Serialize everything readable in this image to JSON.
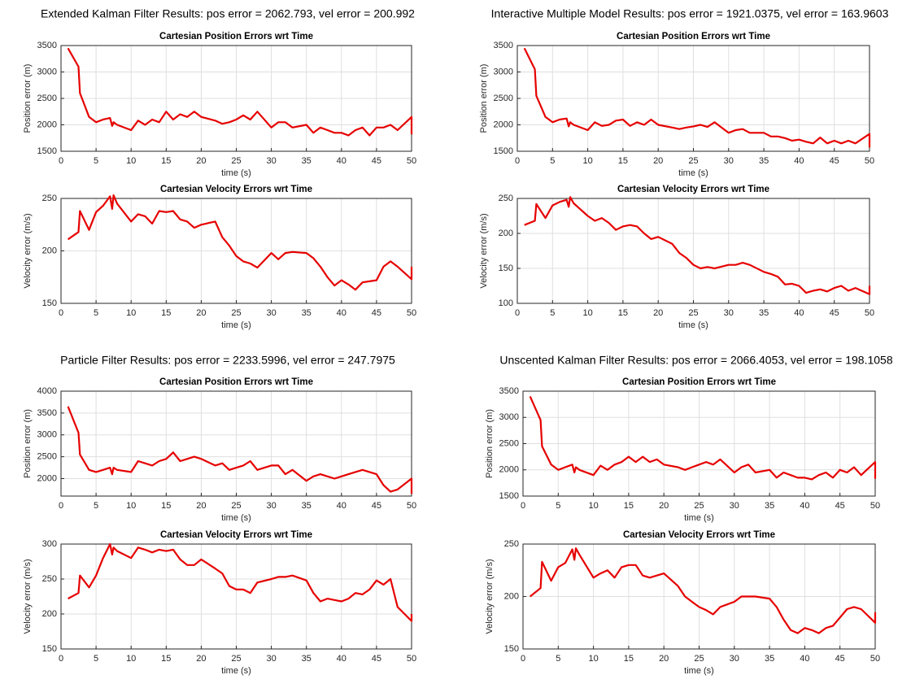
{
  "panel_titles": [
    "Extended Kalman Filter Results: pos error = 2062.793, vel error = 200.992",
    "Interactive Multiple Model Results: pos error = 1921.0375, vel error = 163.9603",
    "Particle Filter Results: pos error = 2233.5996, vel error = 247.7975",
    "Unscented Kalman Filter Results: pos error = 2066.4053, vel error = 198.1058"
  ],
  "chart_data": [
    {
      "type": "line",
      "title": "Cartesian Position Errors wrt Time",
      "xlabel": "time (s)",
      "ylabel": "Position error (m)",
      "color": "#e60000",
      "grid": true,
      "xlim": [
        0,
        50
      ],
      "xticks": [
        0,
        5,
        10,
        15,
        20,
        25,
        30,
        35,
        40,
        45,
        50
      ],
      "ylim": [
        1500,
        3500
      ],
      "yticks": [
        1500,
        2000,
        2500,
        3000,
        3500
      ],
      "x": [
        1,
        2.5,
        2.7,
        4,
        5,
        6,
        7,
        7.3,
        7.5,
        8,
        10,
        11,
        12,
        13,
        14,
        15,
        16,
        17,
        18,
        19,
        20,
        22,
        23,
        24,
        25,
        26,
        27,
        28,
        30,
        31,
        32,
        33,
        35,
        36,
        37,
        38,
        39,
        40,
        41,
        42,
        43,
        44,
        45,
        46,
        47,
        48,
        50,
        50
      ],
      "values": [
        3450,
        3100,
        2600,
        2150,
        2050,
        2100,
        2130,
        1980,
        2050,
        2000,
        1900,
        2080,
        2000,
        2100,
        2050,
        2250,
        2100,
        2200,
        2150,
        2250,
        2150,
        2080,
        2020,
        2050,
        2100,
        2180,
        2100,
        2250,
        1950,
        2050,
        2050,
        1950,
        2000,
        1850,
        1950,
        1900,
        1850,
        1850,
        1800,
        1900,
        1950,
        1800,
        1950,
        1950,
        2000,
        1900,
        2150,
        1820
      ]
    },
    {
      "type": "line",
      "title": "Cartesian Velocity Errors wrt Time",
      "xlabel": "time (s)",
      "ylabel": "Velocity error (m/s)",
      "color": "#e60000",
      "grid": true,
      "xlim": [
        0,
        50
      ],
      "xticks": [
        0,
        5,
        10,
        15,
        20,
        25,
        30,
        35,
        40,
        45,
        50
      ],
      "ylim": [
        150,
        250
      ],
      "yticks": [
        150,
        200,
        250
      ],
      "x": [
        1,
        2.5,
        2.7,
        4,
        5,
        6,
        7,
        7.3,
        7.5,
        8,
        10,
        11,
        12,
        13,
        14,
        15,
        16,
        17,
        18,
        19,
        20,
        22,
        23,
        24,
        25,
        26,
        27,
        28,
        30,
        31,
        32,
        33,
        35,
        36,
        37,
        38,
        39,
        40,
        41,
        42,
        43,
        44,
        45,
        46,
        47,
        48,
        50,
        50
      ],
      "values": [
        211,
        218,
        238,
        220,
        237,
        243,
        252,
        240,
        253,
        245,
        228,
        235,
        233,
        226,
        238,
        237,
        238,
        230,
        228,
        222,
        225,
        228,
        213,
        205,
        195,
        190,
        188,
        184,
        198,
        192,
        198,
        199,
        198,
        193,
        185,
        175,
        167,
        172,
        168,
        163,
        170,
        171,
        172,
        185,
        190,
        185,
        173,
        185
      ]
    },
    {
      "type": "line",
      "title": "Cartesian Position Errors wrt Time",
      "xlabel": "time (s)",
      "ylabel": "Position error (m)",
      "color": "#e60000",
      "grid": true,
      "xlim": [
        0,
        50
      ],
      "xticks": [
        0,
        5,
        10,
        15,
        20,
        25,
        30,
        35,
        40,
        45,
        50
      ],
      "ylim": [
        1500,
        3500
      ],
      "yticks": [
        1500,
        2000,
        2500,
        3000,
        3500
      ],
      "x": [
        1,
        2.5,
        2.7,
        4,
        5,
        6,
        7,
        7.3,
        7.5,
        8,
        10,
        11,
        12,
        13,
        14,
        15,
        16,
        17,
        18,
        19,
        20,
        22,
        23,
        24,
        25,
        26,
        27,
        28,
        30,
        31,
        32,
        33,
        35,
        36,
        37,
        38,
        39,
        40,
        41,
        42,
        43,
        44,
        45,
        46,
        47,
        48,
        50,
        50
      ],
      "values": [
        3450,
        3050,
        2550,
        2150,
        2050,
        2100,
        2120,
        1970,
        2050,
        2000,
        1900,
        2050,
        1980,
        2000,
        2080,
        2100,
        1980,
        2050,
        2000,
        2100,
        2000,
        1950,
        1920,
        1950,
        1970,
        2000,
        1960,
        2050,
        1850,
        1900,
        1920,
        1850,
        1850,
        1780,
        1780,
        1750,
        1700,
        1720,
        1680,
        1650,
        1760,
        1650,
        1700,
        1650,
        1700,
        1650,
        1830,
        1570
      ]
    },
    {
      "type": "line",
      "title": "Cartesian Velocity Errors wrt Time",
      "xlabel": "time (s)",
      "ylabel": "Velocity error (m/s)",
      "color": "#e60000",
      "grid": true,
      "xlim": [
        0,
        50
      ],
      "xticks": [
        0,
        5,
        10,
        15,
        20,
        25,
        30,
        35,
        40,
        45,
        50
      ],
      "ylim": [
        100,
        250
      ],
      "yticks": [
        100,
        150,
        200,
        250
      ],
      "x": [
        1,
        2.5,
        2.7,
        4,
        5,
        6,
        7,
        7.3,
        7.5,
        8,
        10,
        11,
        12,
        13,
        14,
        15,
        16,
        17,
        18,
        19,
        20,
        22,
        23,
        24,
        25,
        26,
        27,
        28,
        30,
        31,
        32,
        33,
        35,
        36,
        37,
        38,
        39,
        40,
        41,
        42,
        43,
        44,
        45,
        46,
        47,
        48,
        50,
        50
      ],
      "values": [
        212,
        218,
        242,
        222,
        240,
        245,
        248,
        238,
        252,
        243,
        225,
        218,
        222,
        215,
        205,
        210,
        212,
        210,
        200,
        192,
        195,
        185,
        172,
        165,
        155,
        150,
        152,
        150,
        155,
        155,
        158,
        155,
        145,
        142,
        138,
        127,
        128,
        125,
        115,
        118,
        120,
        117,
        122,
        125,
        118,
        122,
        113,
        125
      ]
    },
    {
      "type": "line",
      "title": "Cartesian Position Errors wrt Time",
      "xlabel": "time (s)",
      "ylabel": "Position error (m)",
      "color": "#e60000",
      "grid": true,
      "xlim": [
        0,
        50
      ],
      "xticks": [
        0,
        5,
        10,
        15,
        20,
        25,
        30,
        35,
        40,
        45,
        50
      ],
      "ylim": [
        1600,
        4000
      ],
      "yticks": [
        2000,
        2500,
        3000,
        3500,
        4000
      ],
      "x": [
        1,
        2.5,
        2.7,
        4,
        5,
        6,
        7,
        7.3,
        7.5,
        8,
        10,
        11,
        12,
        13,
        14,
        15,
        16,
        17,
        18,
        19,
        20,
        22,
        23,
        24,
        25,
        26,
        27,
        28,
        30,
        31,
        32,
        33,
        35,
        36,
        37,
        38,
        39,
        40,
        41,
        42,
        43,
        44,
        45,
        46,
        47,
        48,
        50,
        50
      ],
      "values": [
        3650,
        3050,
        2550,
        2200,
        2150,
        2200,
        2250,
        2100,
        2250,
        2200,
        2150,
        2400,
        2350,
        2300,
        2400,
        2450,
        2600,
        2400,
        2450,
        2500,
        2450,
        2300,
        2350,
        2200,
        2250,
        2300,
        2400,
        2200,
        2300,
        2300,
        2100,
        2200,
        1950,
        2050,
        2100,
        2050,
        2000,
        2050,
        2100,
        2150,
        2200,
        2150,
        2100,
        1850,
        1700,
        1750,
        2000,
        1650
      ]
    },
    {
      "type": "line",
      "title": "Cartesian Velocity Errors wrt Time",
      "xlabel": "time (s)",
      "ylabel": "Velocity error (m/s)",
      "color": "#e60000",
      "grid": true,
      "xlim": [
        0,
        50
      ],
      "xticks": [
        0,
        5,
        10,
        15,
        20,
        25,
        30,
        35,
        40,
        45,
        50
      ],
      "ylim": [
        150,
        300
      ],
      "yticks": [
        150,
        200,
        250,
        300
      ],
      "x": [
        1,
        2.5,
        2.7,
        4,
        5,
        6,
        7,
        7.3,
        7.5,
        8,
        10,
        11,
        12,
        13,
        14,
        15,
        16,
        17,
        18,
        19,
        20,
        22,
        23,
        24,
        25,
        26,
        27,
        28,
        30,
        31,
        32,
        33,
        35,
        36,
        37,
        38,
        39,
        40,
        41,
        42,
        43,
        44,
        45,
        46,
        47,
        48,
        50,
        50
      ],
      "values": [
        222,
        230,
        255,
        238,
        255,
        280,
        300,
        285,
        295,
        290,
        280,
        295,
        292,
        288,
        292,
        290,
        292,
        278,
        270,
        270,
        278,
        265,
        258,
        240,
        235,
        235,
        230,
        245,
        250,
        253,
        253,
        255,
        248,
        230,
        218,
        222,
        220,
        218,
        222,
        230,
        228,
        235,
        248,
        242,
        250,
        210,
        190,
        200
      ]
    },
    {
      "type": "line",
      "title": "Cartesian Position Errors wrt Time",
      "xlabel": "time (s)",
      "ylabel": "Position error (m)",
      "color": "#e60000",
      "grid": true,
      "xlim": [
        0,
        50
      ],
      "xticks": [
        0,
        5,
        10,
        15,
        20,
        25,
        30,
        35,
        40,
        45,
        50
      ],
      "ylim": [
        1500,
        3500
      ],
      "yticks": [
        1500,
        2000,
        2500,
        3000,
        3500
      ],
      "x": [
        1,
        2.5,
        2.7,
        4,
        5,
        6,
        7,
        7.3,
        7.5,
        8,
        10,
        11,
        12,
        13,
        14,
        15,
        16,
        17,
        18,
        19,
        20,
        22,
        23,
        24,
        25,
        26,
        27,
        28,
        30,
        31,
        32,
        33,
        35,
        36,
        37,
        38,
        39,
        40,
        41,
        42,
        43,
        44,
        45,
        46,
        47,
        48,
        50,
        50
      ],
      "values": [
        3400,
        2950,
        2450,
        2100,
        2000,
        2050,
        2100,
        1950,
        2050,
        2000,
        1900,
        2080,
        2000,
        2100,
        2150,
        2250,
        2150,
        2250,
        2150,
        2200,
        2100,
        2050,
        2000,
        2050,
        2100,
        2150,
        2100,
        2200,
        1950,
        2050,
        2100,
        1950,
        2000,
        1850,
        1950,
        1900,
        1850,
        1850,
        1820,
        1900,
        1950,
        1850,
        2000,
        1950,
        2050,
        1900,
        2150,
        1830
      ]
    },
    {
      "type": "line",
      "title": "Cartesian Velocity Errors wrt Time",
      "xlabel": "time (s)",
      "ylabel": "Velocity error (m/s)",
      "color": "#e60000",
      "grid": true,
      "xlim": [
        0,
        50
      ],
      "xticks": [
        0,
        5,
        10,
        15,
        20,
        25,
        30,
        35,
        40,
        45,
        50
      ],
      "ylim": [
        150,
        250
      ],
      "yticks": [
        150,
        200,
        250
      ],
      "x": [
        1,
        2.5,
        2.7,
        4,
        5,
        6,
        7,
        7.3,
        7.5,
        8,
        10,
        11,
        12,
        13,
        14,
        15,
        16,
        17,
        18,
        19,
        20,
        22,
        23,
        24,
        25,
        26,
        27,
        28,
        30,
        31,
        32,
        33,
        35,
        36,
        37,
        38,
        39,
        40,
        41,
        42,
        43,
        44,
        45,
        46,
        47,
        48,
        50,
        50
      ],
      "values": [
        200,
        208,
        233,
        215,
        228,
        232,
        245,
        235,
        246,
        240,
        218,
        222,
        225,
        218,
        228,
        230,
        230,
        220,
        218,
        220,
        222,
        210,
        200,
        195,
        190,
        187,
        183,
        190,
        195,
        200,
        200,
        200,
        198,
        190,
        178,
        168,
        165,
        170,
        168,
        165,
        170,
        172,
        180,
        188,
        190,
        188,
        175,
        185
      ]
    }
  ]
}
